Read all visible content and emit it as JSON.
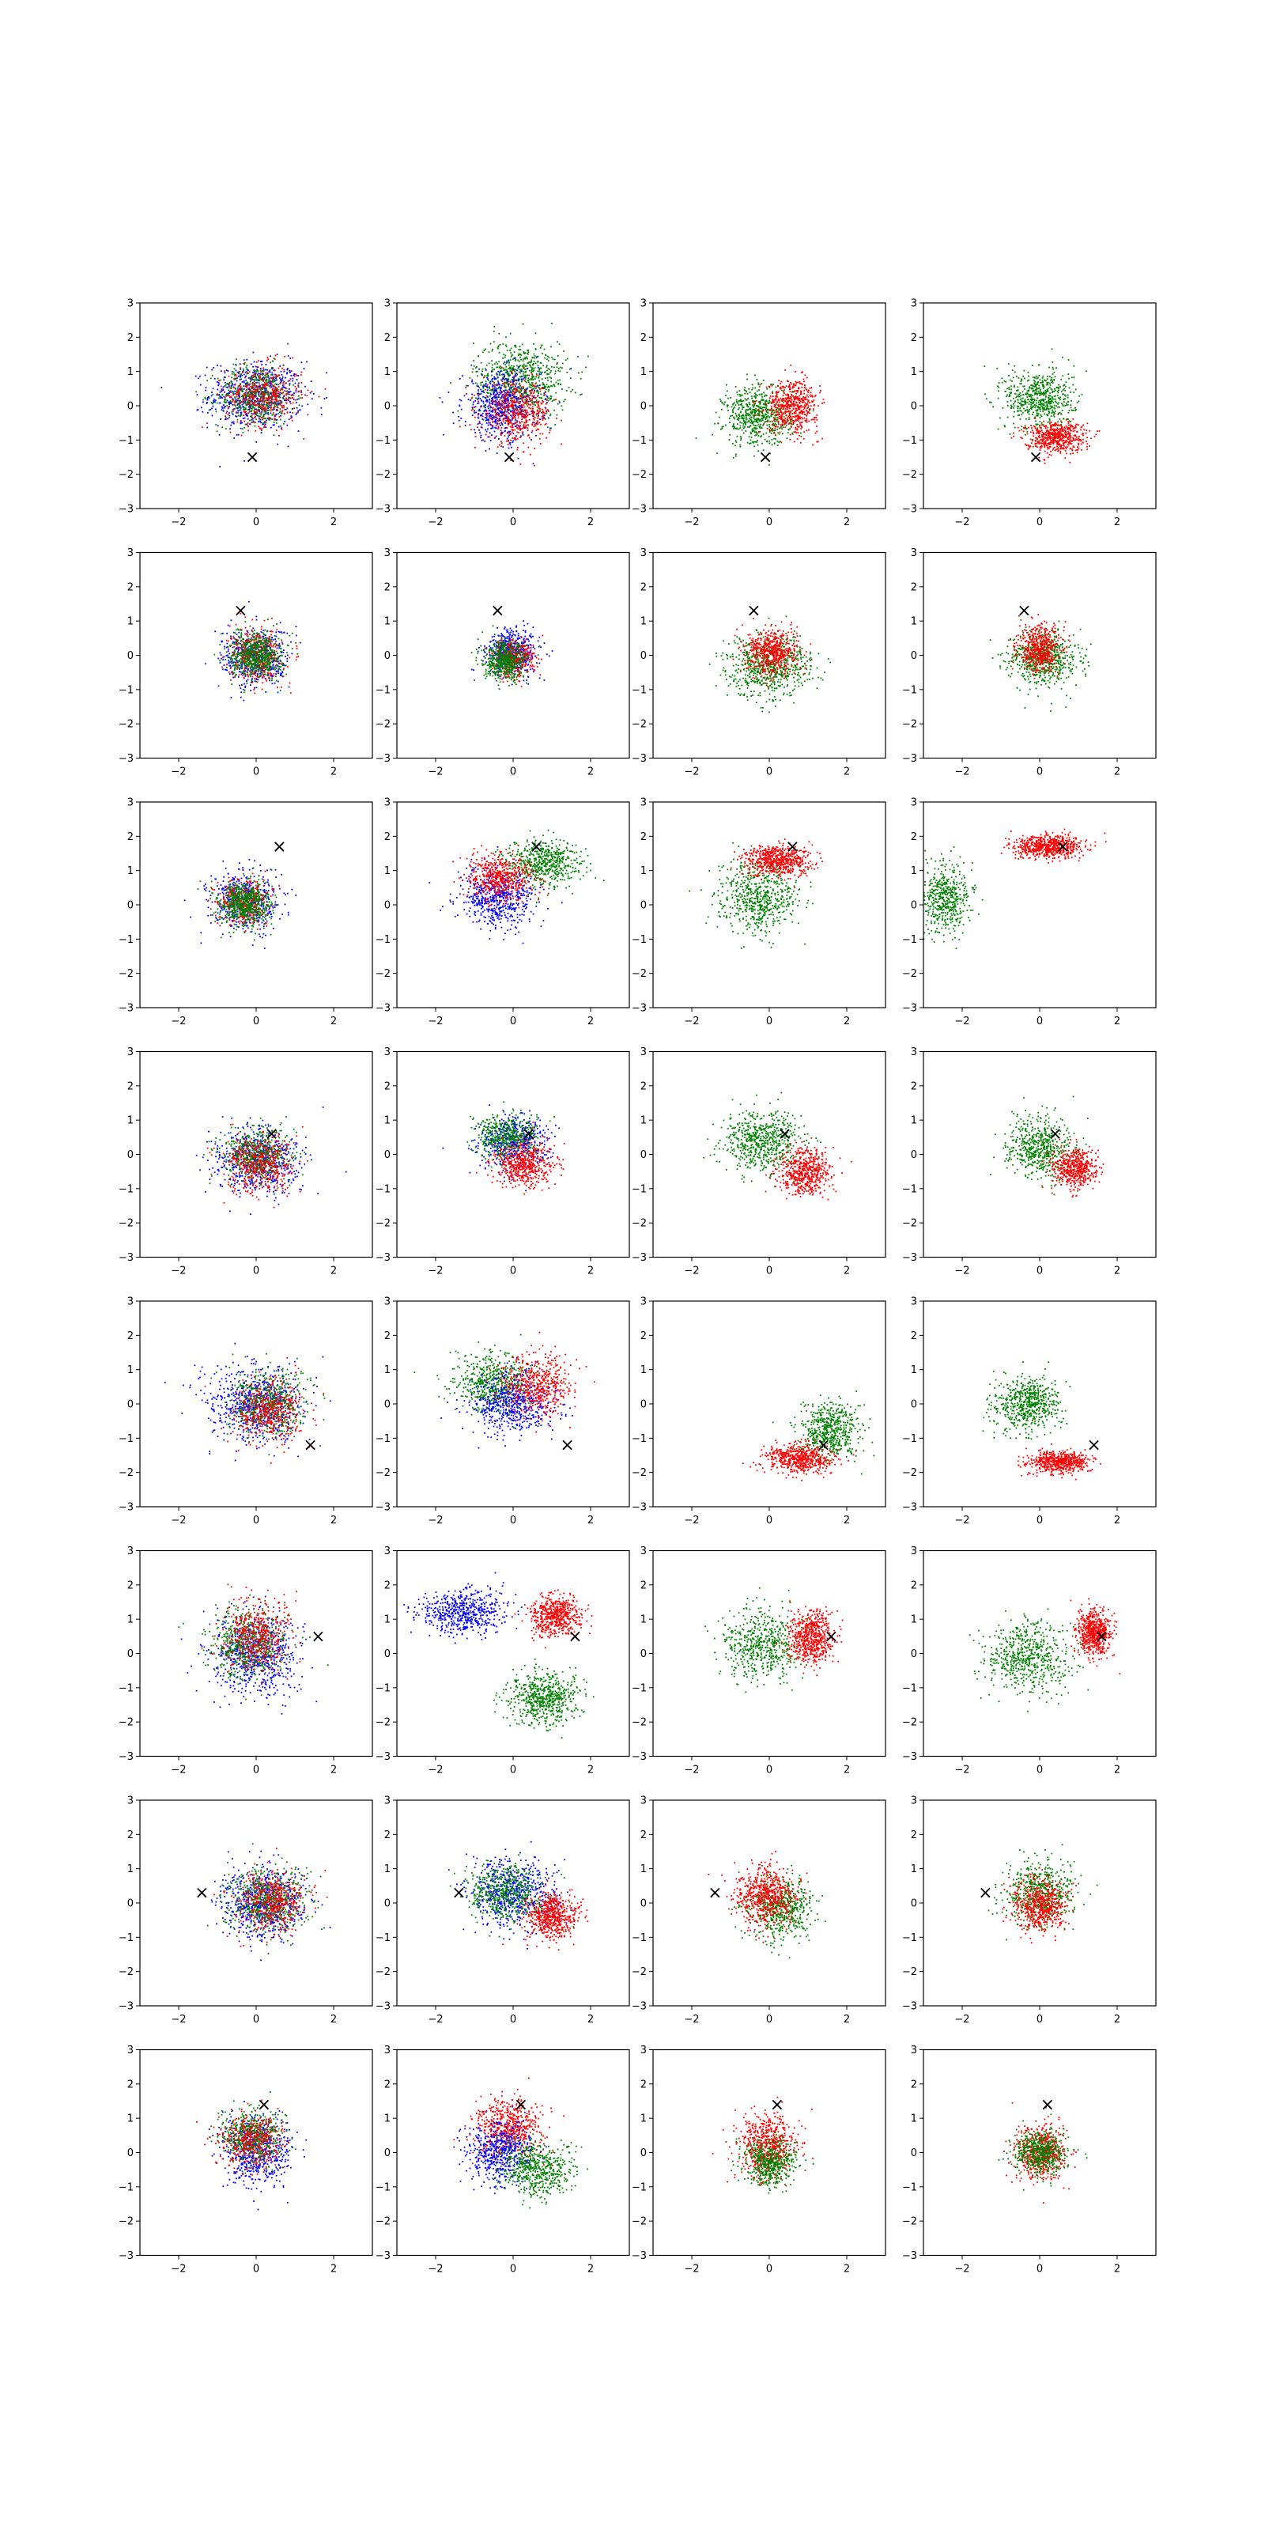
{
  "figure": {
    "rows": 8,
    "cols": 4,
    "colors": {
      "blue": "#0000ff",
      "green": "#008000",
      "red": "#ff0000",
      "marker": "#000000"
    }
  },
  "chart_data": {
    "type": "scatter",
    "layout": "8x4 grid of scatter subplots",
    "xlim": [
      -3,
      3
    ],
    "ylim": [
      -3,
      3
    ],
    "xticks": [
      "−2",
      "0",
      "2"
    ],
    "yticks": [
      "−3",
      "−2",
      "−1",
      "0",
      "1",
      "2",
      "3"
    ],
    "grid": false,
    "legend": "none",
    "marker_symbol": "×",
    "rows": [
      {
        "marker": [
          -0.1,
          -1.5
        ],
        "panels": [
          {
            "clouds": [
              {
                "color": "blue",
                "cx": 0,
                "cy": 0.3,
                "sx": 1.1,
                "sy": 0.9,
                "n": 700
              },
              {
                "color": "green",
                "cx": 0,
                "cy": 0.3,
                "sx": 0.9,
                "sy": 0.8,
                "n": 500
              },
              {
                "color": "red",
                "cx": 0.2,
                "cy": 0.3,
                "sx": 0.9,
                "sy": 0.8,
                "n": 400
              }
            ]
          },
          {
            "clouds": [
              {
                "color": "green",
                "cx": 0.2,
                "cy": 0.8,
                "sx": 1.1,
                "sy": 1.0,
                "n": 700
              },
              {
                "color": "blue",
                "cx": -0.3,
                "cy": 0.0,
                "sx": 0.9,
                "sy": 0.9,
                "n": 600
              },
              {
                "color": "red",
                "cx": 0.1,
                "cy": -0.2,
                "sx": 0.8,
                "sy": 0.8,
                "n": 500
              }
            ]
          },
          {
            "clouds": [
              {
                "color": "green",
                "cx": -0.3,
                "cy": -0.3,
                "sx": 0.8,
                "sy": 0.8,
                "n": 600
              },
              {
                "color": "red",
                "cx": 0.6,
                "cy": 0.0,
                "sx": 0.6,
                "sy": 0.7,
                "n": 550
              }
            ]
          },
          {
            "clouds": [
              {
                "color": "green",
                "cx": 0.0,
                "cy": 0.2,
                "sx": 0.8,
                "sy": 0.8,
                "n": 600
              },
              {
                "color": "red",
                "cx": 0.4,
                "cy": -0.9,
                "sx": 0.7,
                "sy": 0.4,
                "n": 550
              }
            ]
          }
        ]
      },
      {
        "marker": [
          -0.4,
          1.3
        ],
        "panels": [
          {
            "clouds": [
              {
                "color": "blue",
                "cx": 0,
                "cy": -0.1,
                "sx": 0.8,
                "sy": 0.8,
                "n": 500
              },
              {
                "color": "red",
                "cx": 0,
                "cy": 0,
                "sx": 0.6,
                "sy": 0.7,
                "n": 400
              },
              {
                "color": "green",
                "cx": 0,
                "cy": 0,
                "sx": 0.6,
                "sy": 0.6,
                "n": 600
              }
            ]
          },
          {
            "clouds": [
              {
                "color": "blue",
                "cx": 0,
                "cy": 0.1,
                "sx": 0.6,
                "sy": 0.6,
                "n": 500
              },
              {
                "color": "red",
                "cx": 0,
                "cy": -0.1,
                "sx": 0.5,
                "sy": 0.5,
                "n": 350
              },
              {
                "color": "green",
                "cx": -0.2,
                "cy": -0.2,
                "sx": 0.5,
                "sy": 0.5,
                "n": 500
              }
            ]
          },
          {
            "clouds": [
              {
                "color": "green",
                "cx": 0,
                "cy": -0.3,
                "sx": 1.0,
                "sy": 0.8,
                "n": 650
              },
              {
                "color": "red",
                "cx": 0.1,
                "cy": 0.1,
                "sx": 0.6,
                "sy": 0.6,
                "n": 550
              }
            ]
          },
          {
            "clouds": [
              {
                "color": "green",
                "cx": 0.1,
                "cy": -0.1,
                "sx": 0.8,
                "sy": 0.7,
                "n": 600
              },
              {
                "color": "red",
                "cx": 0,
                "cy": 0.2,
                "sx": 0.5,
                "sy": 0.6,
                "n": 500
              }
            ]
          }
        ]
      },
      {
        "marker": [
          0.6,
          1.7
        ],
        "panels": [
          {
            "clouds": [
              {
                "color": "blue",
                "cx": -0.3,
                "cy": 0.1,
                "sx": 0.8,
                "sy": 0.8,
                "n": 450
              },
              {
                "color": "red",
                "cx": -0.3,
                "cy": 0.1,
                "sx": 0.6,
                "sy": 0.6,
                "n": 350
              },
              {
                "color": "green",
                "cx": -0.3,
                "cy": 0,
                "sx": 0.6,
                "sy": 0.6,
                "n": 600
              }
            ]
          },
          {
            "clouds": [
              {
                "color": "green",
                "cx": 0.8,
                "cy": 1.2,
                "sx": 0.9,
                "sy": 0.6,
                "n": 550
              },
              {
                "color": "blue",
                "cx": -0.4,
                "cy": 0.2,
                "sx": 0.9,
                "sy": 0.8,
                "n": 550
              },
              {
                "color": "red",
                "cx": -0.3,
                "cy": 0.8,
                "sx": 0.8,
                "sy": 0.6,
                "n": 500
              }
            ]
          },
          {
            "clouds": [
              {
                "color": "green",
                "cx": -0.3,
                "cy": 0.2,
                "sx": 0.9,
                "sy": 0.9,
                "n": 600
              },
              {
                "color": "red",
                "cx": 0.2,
                "cy": 1.3,
                "sx": 0.8,
                "sy": 0.4,
                "n": 600
              }
            ]
          },
          {
            "clouds": [
              {
                "color": "green",
                "cx": -2.4,
                "cy": 0.2,
                "sx": 0.6,
                "sy": 0.9,
                "n": 500
              },
              {
                "color": "red",
                "cx": 0.2,
                "cy": 1.7,
                "sx": 0.8,
                "sy": 0.3,
                "n": 650
              }
            ]
          }
        ]
      },
      {
        "marker": [
          0.4,
          0.6
        ],
        "panels": [
          {
            "clouds": [
              {
                "color": "blue",
                "cx": 0,
                "cy": -0.2,
                "sx": 1.0,
                "sy": 0.9,
                "n": 550
              },
              {
                "color": "green",
                "cx": 0,
                "cy": 0,
                "sx": 0.8,
                "sy": 0.7,
                "n": 500
              },
              {
                "color": "red",
                "cx": 0.1,
                "cy": -0.3,
                "sx": 0.8,
                "sy": 0.8,
                "n": 450
              }
            ]
          },
          {
            "clouds": [
              {
                "color": "blue",
                "cx": 0,
                "cy": 0.3,
                "sx": 0.8,
                "sy": 0.7,
                "n": 500
              },
              {
                "color": "green",
                "cx": -0.2,
                "cy": 0.5,
                "sx": 0.7,
                "sy": 0.6,
                "n": 450
              },
              {
                "color": "red",
                "cx": 0.3,
                "cy": -0.3,
                "sx": 0.7,
                "sy": 0.6,
                "n": 500
              }
            ]
          },
          {
            "clouds": [
              {
                "color": "green",
                "cx": -0.2,
                "cy": 0.4,
                "sx": 0.9,
                "sy": 0.8,
                "n": 600
              },
              {
                "color": "red",
                "cx": 0.9,
                "cy": -0.5,
                "sx": 0.6,
                "sy": 0.6,
                "n": 550
              }
            ]
          },
          {
            "clouds": [
              {
                "color": "green",
                "cx": 0,
                "cy": 0.2,
                "sx": 0.8,
                "sy": 0.8,
                "n": 550
              },
              {
                "color": "red",
                "cx": 0.9,
                "cy": -0.4,
                "sx": 0.5,
                "sy": 0.5,
                "n": 500
              }
            ]
          }
        ]
      },
      {
        "marker": [
          1.4,
          -1.2
        ],
        "panels": [
          {
            "clouds": [
              {
                "color": "blue",
                "cx": 0,
                "cy": 0,
                "sx": 1.1,
                "sy": 1.0,
                "n": 650
              },
              {
                "color": "green",
                "cx": 0.3,
                "cy": 0,
                "sx": 0.9,
                "sy": 0.9,
                "n": 500
              },
              {
                "color": "red",
                "cx": 0.3,
                "cy": -0.2,
                "sx": 0.8,
                "sy": 0.8,
                "n": 450
              }
            ]
          },
          {
            "clouds": [
              {
                "color": "green",
                "cx": -0.5,
                "cy": 0.6,
                "sx": 0.9,
                "sy": 0.8,
                "n": 550
              },
              {
                "color": "blue",
                "cx": 0,
                "cy": 0,
                "sx": 0.9,
                "sy": 0.8,
                "n": 550
              },
              {
                "color": "red",
                "cx": 0.6,
                "cy": 0.5,
                "sx": 0.8,
                "sy": 0.8,
                "n": 500
              }
            ]
          },
          {
            "clouds": [
              {
                "color": "green",
                "cx": 1.6,
                "cy": -0.8,
                "sx": 0.7,
                "sy": 0.7,
                "n": 550
              },
              {
                "color": "red",
                "cx": 0.8,
                "cy": -1.6,
                "sx": 0.8,
                "sy": 0.4,
                "n": 550
              }
            ]
          },
          {
            "clouds": [
              {
                "color": "green",
                "cx": -0.3,
                "cy": 0,
                "sx": 0.8,
                "sy": 0.7,
                "n": 600
              },
              {
                "color": "red",
                "cx": 0.5,
                "cy": -1.7,
                "sx": 0.7,
                "sy": 0.3,
                "n": 550
              }
            ]
          }
        ]
      },
      {
        "marker": [
          1.6,
          0.5
        ],
        "panels": [
          {
            "clouds": [
              {
                "color": "blue",
                "cx": 0,
                "cy": 0,
                "sx": 1.0,
                "sy": 1.1,
                "n": 650
              },
              {
                "color": "green",
                "cx": -0.2,
                "cy": 0.3,
                "sx": 0.9,
                "sy": 0.9,
                "n": 550
              },
              {
                "color": "red",
                "cx": 0,
                "cy": 0.5,
                "sx": 0.8,
                "sy": 0.9,
                "n": 450
              }
            ]
          },
          {
            "clouds": [
              {
                "color": "blue",
                "cx": -1.3,
                "cy": 1.2,
                "sx": 1.0,
                "sy": 0.6,
                "n": 550
              },
              {
                "color": "green",
                "cx": 0.8,
                "cy": -1.3,
                "sx": 0.8,
                "sy": 0.7,
                "n": 600
              },
              {
                "color": "red",
                "cx": 1.1,
                "cy": 1.1,
                "sx": 0.6,
                "sy": 0.5,
                "n": 550
              }
            ]
          },
          {
            "clouds": [
              {
                "color": "green",
                "cx": -0.2,
                "cy": 0.3,
                "sx": 0.9,
                "sy": 0.9,
                "n": 550
              },
              {
                "color": "red",
                "cx": 1.1,
                "cy": 0.5,
                "sx": 0.5,
                "sy": 0.7,
                "n": 600
              }
            ]
          },
          {
            "clouds": [
              {
                "color": "green",
                "cx": -0.3,
                "cy": -0.1,
                "sx": 1.0,
                "sy": 0.9,
                "n": 600
              },
              {
                "color": "red",
                "cx": 1.4,
                "cy": 0.6,
                "sx": 0.4,
                "sy": 0.6,
                "n": 600
              }
            ]
          }
        ]
      },
      {
        "marker": [
          -1.4,
          0.3
        ],
        "panels": [
          {
            "clouds": [
              {
                "color": "blue",
                "cx": 0.2,
                "cy": 0,
                "sx": 1.0,
                "sy": 0.9,
                "n": 650
              },
              {
                "color": "green",
                "cx": 0.3,
                "cy": 0,
                "sx": 0.9,
                "sy": 0.8,
                "n": 550
              },
              {
                "color": "red",
                "cx": 0.4,
                "cy": 0,
                "sx": 0.8,
                "sy": 0.8,
                "n": 450
              }
            ]
          },
          {
            "clouds": [
              {
                "color": "blue",
                "cx": 0,
                "cy": 0.3,
                "sx": 1.0,
                "sy": 0.9,
                "n": 600
              },
              {
                "color": "green",
                "cx": -0.2,
                "cy": 0.3,
                "sx": 0.9,
                "sy": 0.8,
                "n": 500
              },
              {
                "color": "red",
                "cx": 1.0,
                "cy": -0.4,
                "sx": 0.6,
                "sy": 0.6,
                "n": 550
              }
            ]
          },
          {
            "clouds": [
              {
                "color": "green",
                "cx": 0.3,
                "cy": -0.2,
                "sx": 0.8,
                "sy": 0.8,
                "n": 550
              },
              {
                "color": "red",
                "cx": -0.1,
                "cy": 0.2,
                "sx": 0.7,
                "sy": 0.8,
                "n": 600
              }
            ]
          },
          {
            "clouds": [
              {
                "color": "green",
                "cx": 0,
                "cy": 0.3,
                "sx": 0.8,
                "sy": 0.8,
                "n": 550
              },
              {
                "color": "red",
                "cx": 0,
                "cy": -0.1,
                "sx": 0.6,
                "sy": 0.7,
                "n": 550
              }
            ]
          }
        ]
      },
      {
        "marker": [
          0.2,
          1.4
        ],
        "panels": [
          {
            "clouds": [
              {
                "color": "blue",
                "cx": 0,
                "cy": 0,
                "sx": 0.8,
                "sy": 0.9,
                "n": 550
              },
              {
                "color": "green",
                "cx": -0.1,
                "cy": 0.5,
                "sx": 0.7,
                "sy": 0.7,
                "n": 500
              },
              {
                "color": "red",
                "cx": -0.1,
                "cy": 0.3,
                "sx": 0.7,
                "sy": 0.7,
                "n": 400
              }
            ]
          },
          {
            "clouds": [
              {
                "color": "red",
                "cx": -0.1,
                "cy": 0.7,
                "sx": 0.8,
                "sy": 0.8,
                "n": 550
              },
              {
                "color": "blue",
                "cx": -0.4,
                "cy": 0,
                "sx": 0.8,
                "sy": 0.8,
                "n": 500
              },
              {
                "color": "green",
                "cx": 0.6,
                "cy": -0.5,
                "sx": 0.8,
                "sy": 0.7,
                "n": 550
              }
            ]
          },
          {
            "clouds": [
              {
                "color": "red",
                "cx": 0,
                "cy": 0.2,
                "sx": 0.7,
                "sy": 0.8,
                "n": 600
              },
              {
                "color": "green",
                "cx": 0,
                "cy": -0.3,
                "sx": 0.6,
                "sy": 0.6,
                "n": 500
              }
            ]
          },
          {
            "clouds": [
              {
                "color": "red",
                "cx": 0,
                "cy": 0,
                "sx": 0.6,
                "sy": 0.7,
                "n": 550
              },
              {
                "color": "green",
                "cx": 0,
                "cy": 0,
                "sx": 0.6,
                "sy": 0.6,
                "n": 500
              }
            ]
          }
        ]
      }
    ]
  }
}
